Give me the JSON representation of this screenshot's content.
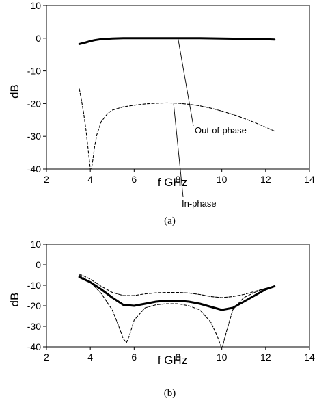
{
  "chart_data": [
    {
      "type": "line",
      "caption": "(a)",
      "xlabel": "f  GHz",
      "ylabel": "dB",
      "xlim": [
        2,
        14
      ],
      "ylim": [
        -40,
        10
      ],
      "xticks": [
        2,
        4,
        6,
        8,
        10,
        12,
        14
      ],
      "yticks": [
        -40,
        -30,
        -20,
        -10,
        0,
        10
      ],
      "grid": false,
      "legend": "none",
      "series": [
        {
          "name": "Out-of-phase",
          "style": "thick-solid",
          "x": [
            3.5,
            3.8,
            4.0,
            4.2,
            4.5,
            5.0,
            5.5,
            6.0,
            7.0,
            8.0,
            9.0,
            10.0,
            11.0,
            12.0,
            12.4
          ],
          "y": [
            -1.8,
            -1.3,
            -0.9,
            -0.6,
            -0.3,
            -0.1,
            0.0,
            0.0,
            0.0,
            0.0,
            0.0,
            -0.1,
            -0.2,
            -0.3,
            -0.4
          ]
        },
        {
          "name": "In-phase",
          "style": "dashed",
          "x": [
            3.5,
            3.6,
            3.7,
            3.8,
            3.9,
            4.0,
            4.05,
            4.1,
            4.2,
            4.3,
            4.5,
            4.8,
            5.0,
            5.5,
            6.0,
            6.5,
            7.0,
            7.5,
            8.0,
            8.5,
            9.0,
            9.5,
            10.0,
            10.5,
            11.0,
            11.5,
            12.0,
            12.4
          ],
          "y": [
            -15.5,
            -19,
            -23,
            -28,
            -34,
            -40,
            -40,
            -38,
            -33,
            -29.5,
            -25.5,
            -23,
            -22,
            -21,
            -20.5,
            -20.1,
            -19.9,
            -19.8,
            -19.9,
            -20.2,
            -20.7,
            -21.4,
            -22.3,
            -23.3,
            -24.5,
            -25.8,
            -27.2,
            -28.4
          ]
        }
      ],
      "annotations": [
        {
          "text": "Out-of-phase",
          "points_to": [
            8.0,
            0.0
          ]
        },
        {
          "text": "In-phase",
          "points_to": [
            7.8,
            -20.0
          ]
        }
      ]
    },
    {
      "type": "line",
      "caption": "(b)",
      "xlabel": "f  GHz",
      "ylabel": "dB",
      "xlim": [
        2,
        14
      ],
      "ylim": [
        -40,
        10
      ],
      "xticks": [
        2,
        4,
        6,
        8,
        10,
        12,
        14
      ],
      "yticks": [
        -40,
        -30,
        -20,
        -10,
        0,
        10
      ],
      "grid": false,
      "legend": "none",
      "series": [
        {
          "style": "thick-solid",
          "x": [
            3.5,
            4.0,
            4.5,
            5.0,
            5.5,
            6.0,
            6.5,
            7.0,
            7.5,
            8.0,
            8.5,
            9.0,
            9.5,
            10.0,
            10.5,
            11.0,
            11.5,
            12.0,
            12.4
          ],
          "y": [
            -6,
            -8.5,
            -12,
            -16,
            -19.5,
            -20,
            -19,
            -18,
            -17.5,
            -17.5,
            -18,
            -19,
            -20.5,
            -22,
            -21,
            -18,
            -15,
            -12,
            -10.5
          ]
        },
        {
          "style": "dashed",
          "x": [
            3.5,
            4.0,
            4.5,
            5.0,
            5.3,
            5.5,
            5.65,
            5.8,
            6.0,
            6.5,
            7.0,
            7.5,
            8.0,
            8.5,
            9.0,
            9.5,
            9.8,
            10.0,
            10.2,
            10.5,
            11.0,
            11.5,
            12.0,
            12.4
          ],
          "y": [
            -5,
            -8.5,
            -14,
            -22,
            -30,
            -36,
            -38,
            -34,
            -27,
            -21,
            -19.5,
            -19,
            -19,
            -20,
            -22,
            -28,
            -35,
            -41,
            -33,
            -22,
            -16,
            -13.5,
            -11.5,
            -10.5
          ]
        },
        {
          "style": "dashed",
          "x": [
            3.5,
            4.0,
            4.5,
            5.0,
            5.5,
            6.0,
            6.5,
            7.0,
            7.5,
            8.0,
            8.5,
            9.0,
            9.5,
            10.0,
            10.5,
            11.0,
            11.5,
            12.0,
            12.4
          ],
          "y": [
            -4.5,
            -7,
            -10.5,
            -13.5,
            -15,
            -15,
            -14.2,
            -13.7,
            -13.5,
            -13.5,
            -13.8,
            -14.5,
            -15.5,
            -16,
            -15.5,
            -14.5,
            -13,
            -11.5,
            -10.5
          ]
        }
      ]
    }
  ]
}
